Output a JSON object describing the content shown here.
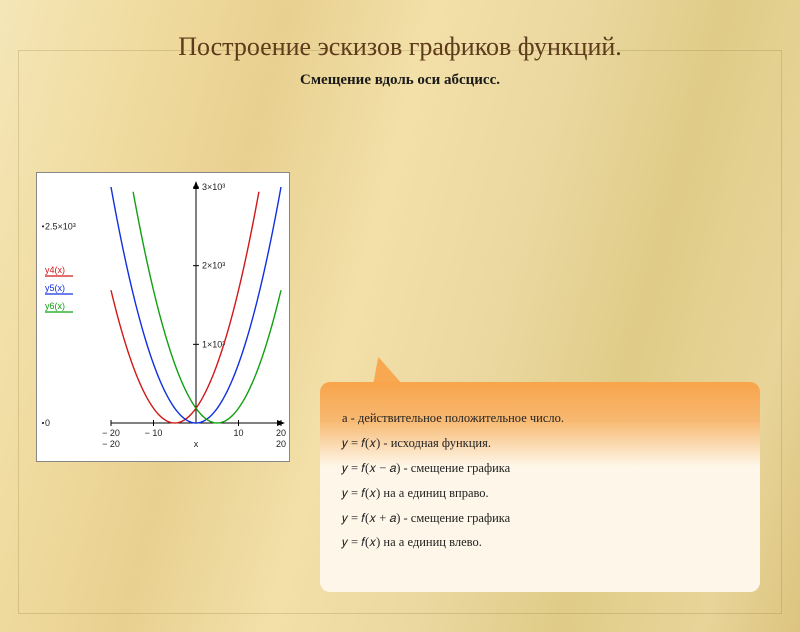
{
  "title": "Построение эскизов графиков функций.",
  "subtitle": "Смещение вдоль оси абсцисс.",
  "chart": {
    "type": "line",
    "background_color": "#ffffff",
    "axis_color": "#000000",
    "xlim": [
      -20,
      20
    ],
    "ylim": [
      0,
      3000
    ],
    "xticks": [
      -20,
      -10,
      0,
      10,
      20
    ],
    "yticks": [
      {
        "v": 0,
        "label": "0"
      },
      {
        "v": 1000,
        "label": "1×10³"
      },
      {
        "v": 2000,
        "label": "2×10³"
      },
      {
        "v": 3000,
        "label": "3×10³"
      }
    ],
    "x_axis_label": "x",
    "x_range_bottom": {
      "left": "− 20",
      "right": "20"
    },
    "y_range_left": {
      "bottom": "0",
      "top": "2.5×10³"
    },
    "series": [
      {
        "name": "y4(x)",
        "color": "#d01818",
        "shift": -5
      },
      {
        "name": "y5(x)",
        "color": "#1030e0",
        "shift": 0
      },
      {
        "name": "y6(x)",
        "color": "#10a010",
        "shift": 5
      }
    ],
    "line_width": 1.4,
    "label_fontsize": 9
  },
  "callout": {
    "bg_gradient_top": "#f8a44a",
    "bg_gradient_bottom": "#fef6e8",
    "font_size": 12.5,
    "lines": [
      "a - действительное  положительное число.",
      "𝑦 = 𝑓(𝑥) - исходная функция.",
      "𝑦 = 𝑓(𝑥 − 𝑎) - смещение графика",
      " 𝑦 = 𝑓(𝑥) на a единиц вправо.",
      "𝑦 = 𝑓(𝑥 + 𝑎) - смещение графика",
      " 𝑦 = 𝑓(𝑥) на a единиц влево."
    ]
  }
}
